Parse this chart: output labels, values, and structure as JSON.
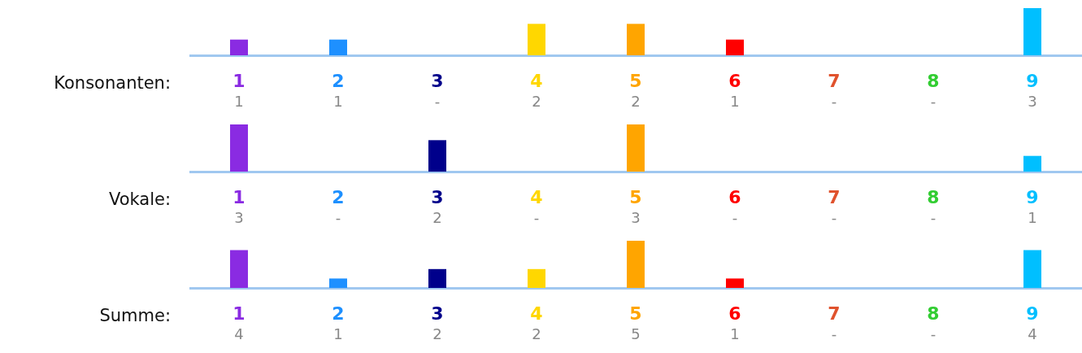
{
  "chart_data": [
    {
      "type": "bar",
      "title": "Konsonanten:",
      "categories": [
        "1",
        "2",
        "3",
        "4",
        "5",
        "6",
        "7",
        "8",
        "9"
      ],
      "colors": [
        "#8a2be2",
        "#1e90ff",
        "#00008b",
        "#ffd700",
        "#ffa500",
        "#ff0000",
        "#e0522d",
        "#32cd32",
        "#00bfff"
      ],
      "values": [
        1,
        1,
        0,
        2,
        2,
        1,
        0,
        0,
        3
      ],
      "value_labels": [
        "1",
        "1",
        "-",
        "2",
        "2",
        "1",
        "-",
        "-",
        "3"
      ]
    },
    {
      "type": "bar",
      "title": "Vokale:",
      "categories": [
        "1",
        "2",
        "3",
        "4",
        "5",
        "6",
        "7",
        "8",
        "9"
      ],
      "colors": [
        "#8a2be2",
        "#1e90ff",
        "#00008b",
        "#ffd700",
        "#ffa500",
        "#ff0000",
        "#e0522d",
        "#32cd32",
        "#00bfff"
      ],
      "values": [
        3,
        0,
        2,
        0,
        3,
        0,
        0,
        0,
        1
      ],
      "value_labels": [
        "3",
        "-",
        "2",
        "-",
        "3",
        "-",
        "-",
        "-",
        "1"
      ]
    },
    {
      "type": "bar",
      "title": "Summe:",
      "categories": [
        "1",
        "2",
        "3",
        "4",
        "5",
        "6",
        "7",
        "8",
        "9"
      ],
      "colors": [
        "#8a2be2",
        "#1e90ff",
        "#00008b",
        "#ffd700",
        "#ffa500",
        "#ff0000",
        "#e0522d",
        "#32cd32",
        "#00bfff"
      ],
      "values": [
        4,
        1,
        2,
        2,
        5,
        1,
        0,
        0,
        4
      ],
      "value_labels": [
        "4",
        "1",
        "2",
        "2",
        "5",
        "1",
        "-",
        "-",
        "4"
      ]
    }
  ]
}
